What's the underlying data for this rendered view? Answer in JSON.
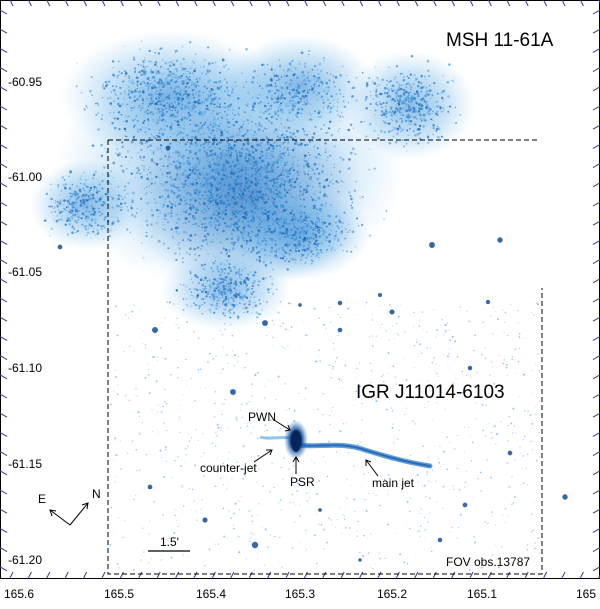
{
  "image": {
    "colors": {
      "emission": "#1f78c8",
      "emission_faint": "#5aaee8",
      "emission_dense": "#0b3f86",
      "frame": "#000000",
      "tick": "#3a3a8a"
    },
    "labels": {
      "remnant": "MSH 11-61A",
      "source": "IGR J11014-6103",
      "pwn": "PWN",
      "psr": "PSR",
      "counter_jet": "counter-jet",
      "main_jet": "main jet",
      "fov": "FOV obs.13787",
      "scale_bar": "1.5'",
      "compass_east": "E",
      "compass_north": "N"
    },
    "ra_ticks": [
      "165.6",
      "165.5",
      "165.4",
      "165.3",
      "165.2",
      "165.1",
      "165"
    ],
    "dec_ticks": [
      "-60.95",
      "-61.00",
      "-61.05",
      "-61.10",
      "-61.15",
      "-61.20"
    ]
  }
}
